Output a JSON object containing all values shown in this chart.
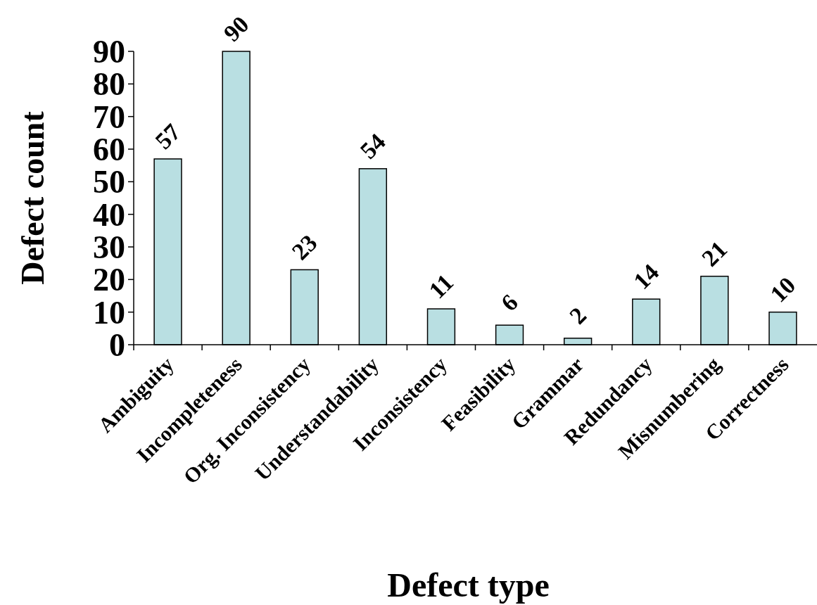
{
  "chart_data": {
    "type": "bar",
    "xlabel": "Defect type",
    "ylabel": "Defect count",
    "categories": [
      "Ambiguity",
      "Incompleteness",
      "Org. Inconsistency",
      "Understandability",
      "Inconsistency",
      "Feasibility",
      "Grammar",
      "Redundancy",
      "Misnumbering",
      "Correctness"
    ],
    "values": [
      57,
      90,
      23,
      54,
      11,
      6,
      2,
      14,
      21,
      10
    ],
    "color": "#b9dfe2",
    "ylim": [
      0,
      90
    ],
    "yticks": [
      0,
      10,
      20,
      30,
      40,
      50,
      60,
      70,
      80,
      90
    ],
    "data_labels": true,
    "grid": false
  }
}
